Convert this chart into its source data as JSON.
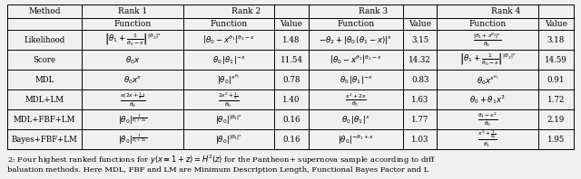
{
  "col_headers": [
    "Method",
    "Rank 1",
    "Rank 2",
    "Rank 3",
    "Rank 4"
  ],
  "sub_headers": [
    "",
    "Function",
    "Function",
    "Value",
    "Function",
    "Value",
    "Function",
    "Value"
  ],
  "rows": [
    {
      "method": "Likelihood",
      "r1_func": "$\\left|\\theta_1 + \\frac{1}{\\theta_0-x}\\right|^{|\\theta_2|^x}$",
      "r2_func": "$\\left|\\theta_0 - x^{\\theta_1}\\right|^{\\theta_2-x}$",
      "r2_val": "1.48",
      "r3_func": "$-\\theta_2 + |\\theta_0\\,(\\theta_1-x)|^x$",
      "r3_val": "3.15",
      "r4_func": "$\\frac{|\\theta_1+x^{\\theta_2}|^x}{\\theta_0}$",
      "r4_val": "3.18"
    },
    {
      "method": "Score",
      "r1_func": "$\\theta_0 x$",
      "r2_func": "$\\theta_0\\,|\\theta_1|^{-x}$",
      "r2_val": "11.54",
      "r3_func": "$\\left|\\theta_0 - x^{\\theta_1}\\right|^{\\theta_2-x}$",
      "r3_val": "14.32",
      "r4_func": "$\\left|\\theta_1 + \\frac{1}{\\theta_0-x}\\right|^{|\\theta_2|^x}$",
      "r4_val": "14.59"
    },
    {
      "method": "MDL",
      "r1_func": "$\\theta_0 x^x$",
      "r2_func": "$|\\theta_0|^{x^{\\theta_1}}$",
      "r2_val": "0.78",
      "r3_func": "$\\theta_0\\,|\\theta_1|^{-x}$",
      "r3_val": "0.83",
      "r4_func": "$\\theta_0 x^{x^{\\theta_1}}$",
      "r4_val": "0.91"
    },
    {
      "method": "MDL+LM",
      "r1_func": "$\\frac{x(2x+\\frac{1}{x})}{\\theta_0}$",
      "r2_func": "$\\frac{2x^2+\\frac{1}{x}}{\\theta_0}$",
      "r2_val": "1.40",
      "r3_func": "$\\frac{x^2+2x}{\\theta_0}$",
      "r3_val": "1.63",
      "r4_func": "$\\theta_0 + \\theta_1 x^3$",
      "r4_val": "1.72"
    },
    {
      "method": "MDL+FBF+LM",
      "r1_func": "$|\\theta_0|^{\\frac{1}{\\theta_1+2x}}$",
      "r2_func": "$|\\theta_0|^{|\\theta_1|^x}$",
      "r2_val": "0.16",
      "r3_func": "$\\theta_0\\,|\\theta_1|^x$",
      "r3_val": "1.77",
      "r4_func": "$\\frac{\\theta_1-x^2}{\\theta_0}$",
      "r4_val": "2.19"
    },
    {
      "method": "Bayes+FBF+LM",
      "r1_func": "$|\\theta_0|^{\\frac{1}{\\theta_1+2x}}$",
      "r2_func": "$|\\theta_0|^{|\\theta_1|^x}$",
      "r2_val": "0.16",
      "r3_func": "$|\\theta_0|^{-\\theta_1+x}$",
      "r3_val": "1.03",
      "r4_func": "$\\frac{x^3+\\frac{1}{\\theta_0}}{\\theta_1}$",
      "r4_val": "1.95"
    }
  ],
  "background_color": "#f0f0f0",
  "table_bg": "#f0f0f0",
  "line_color": "#000000",
  "header_fontsize": 6.5,
  "cell_fontsize": 6.2,
  "caption_fontsize": 6.0,
  "caption1": "2: Four highest ranked functions for $y(x \\equiv 1+z) = H^2(z)$ for the Pantheon+ supernova sample according to diff",
  "caption2": "baluation methods. Here MDL, FBF and LM are Minimum Description Length, Functional Bayes Factor and L"
}
